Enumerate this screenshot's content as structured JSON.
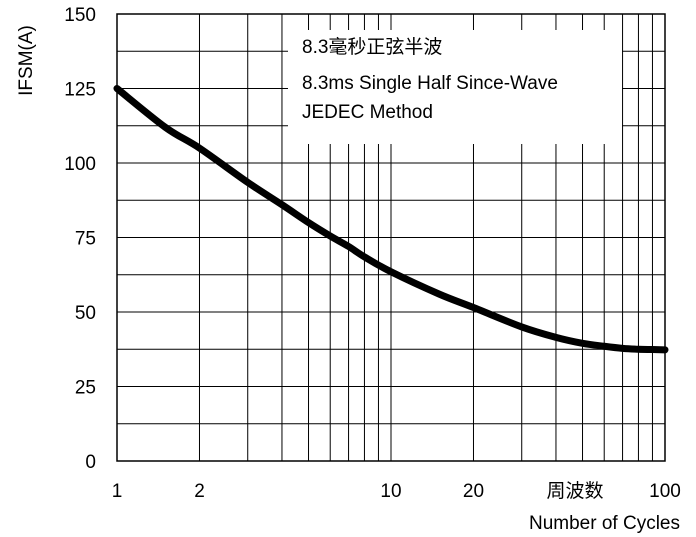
{
  "chart_data": {
    "type": "line",
    "ylabel": "IFSM(A)",
    "xlabel": "Number of Cycles",
    "xlabel_cn": "周波数",
    "x_scale": "log",
    "xlim": [
      1,
      100
    ],
    "ylim": [
      0,
      150
    ],
    "y_ticks": [
      0,
      25,
      50,
      75,
      100,
      125,
      150
    ],
    "x_tick_labels": [
      {
        "value": 1,
        "label": "1"
      },
      {
        "value": 2,
        "label": "2"
      },
      {
        "value": 10,
        "label": "10"
      },
      {
        "value": 20,
        "label": "20"
      },
      {
        "value": 100,
        "label": "100"
      }
    ],
    "x_grid": [
      1,
      2,
      3,
      4,
      5,
      6,
      7,
      8,
      9,
      10,
      20,
      30,
      40,
      50,
      60,
      70,
      80,
      90,
      100
    ],
    "y_grid": [
      0,
      12.5,
      25,
      37.5,
      50,
      62.5,
      75,
      87.5,
      100,
      112.5,
      125,
      137.5,
      150
    ],
    "grid": true,
    "annotation": [
      "8.3毫秒正弦半波",
      "8.3ms Single Half Since-Wave",
      "JEDEC Method"
    ],
    "series": [
      {
        "x": [
          1,
          1.5,
          2,
          3,
          4,
          5,
          6,
          7,
          8,
          10,
          15,
          20,
          30,
          40,
          50,
          60,
          70,
          80,
          90,
          100
        ],
        "y": [
          125,
          112,
          105,
          93.5,
          86,
          80,
          75.5,
          72,
          68.5,
          63.5,
          56,
          51.5,
          45,
          41.5,
          39.5,
          38.5,
          37.8,
          37.5,
          37.4,
          37.3
        ]
      }
    ]
  }
}
